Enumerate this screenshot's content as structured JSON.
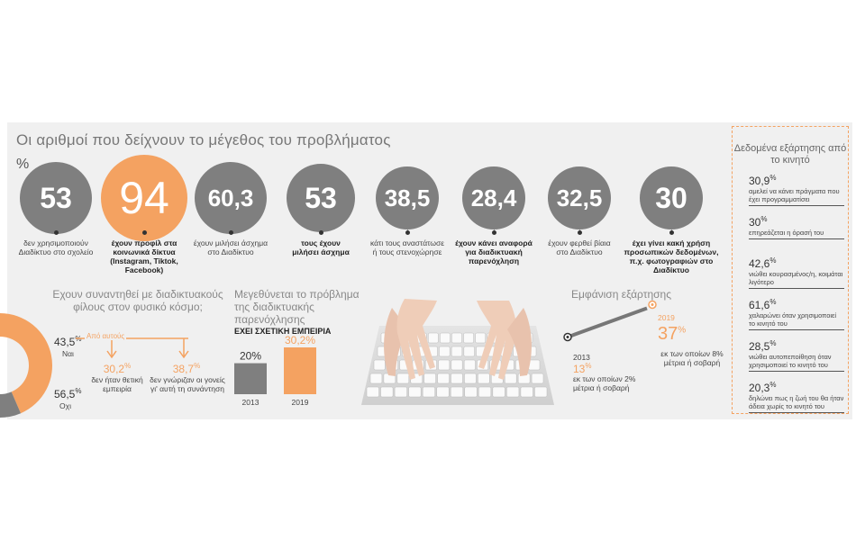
{
  "title": "Οι αριθμοί που δείχνουν το μέγεθος του προβλήματος",
  "percent_symbol": "%",
  "colors": {
    "accent": "#f4a261",
    "gray": "#7f7f7f",
    "panel": "#f0f0f0"
  },
  "chart_data": [
    {
      "type": "bubble-stats",
      "unit": "%",
      "items": [
        {
          "value": "53",
          "label": "δεν χρησιμοποιούν Διαδίκτυο στο σχολείο",
          "highlight": false
        },
        {
          "value": "94",
          "label": "έχουν προφίλ στα κοινωνικά δίκτυα (Instagram, Tiktok, Facebook)",
          "highlight": true
        },
        {
          "value": "60,3",
          "label": "έχουν μιλήσει άσχημα στο Διαδίκτυο",
          "highlight": false
        },
        {
          "value": "53",
          "label": "τους έχουν μιλήσει άσχημα",
          "highlight": false
        },
        {
          "value": "38,5",
          "label": "κάτι τους αναστάτωσε ή τους στενοχώρησε",
          "highlight": false
        },
        {
          "value": "28,4",
          "label": "έχουν κάνει αναφορά για διαδικτυακή παρενόχληση",
          "highlight": false
        },
        {
          "value": "32,5",
          "label": "έχουν φερθεί βίαια στο Διαδίκτυο",
          "highlight": false
        },
        {
          "value": "30",
          "label": "έχει γίνει κακή χρήση προσωπικών δεδομένων, π.χ. φωτογραφιών στο Διαδίκτυο",
          "highlight": false
        }
      ]
    },
    {
      "type": "pie",
      "title": "Εχουν συναντηθεί με διαδικτυακούς φίλους στον φυσικό κόσμο;",
      "slices": [
        {
          "label": "Ναι",
          "value": 43.5,
          "display": "43,5",
          "color": "#f4a261"
        },
        {
          "label": "Οχι",
          "value": 56.5,
          "display": "56,5",
          "color": "#7f7f7f"
        }
      ],
      "sub_label": "Από αυτούς",
      "sub": [
        {
          "value": "30,2",
          "label": "δεν ήταν θετική εμπειρία"
        },
        {
          "value": "38,7",
          "label": "δεν γνώριζαν οι γονείς γι' αυτή τη συνάντηση"
        }
      ]
    },
    {
      "type": "bar",
      "title": "Μεγεθύνεται το πρόβλημα της διαδικτυακής παρενόχλησης",
      "subtitle": "ΕΧΕΙ ΣΧΕΤΙΚΗ ΕΜΠΕΙΡΙΑ",
      "categories": [
        "2013",
        "2019"
      ],
      "values": [
        20,
        30.2
      ],
      "labels": [
        "20",
        "30,2"
      ],
      "colors": [
        "#7f7f7f",
        "#f4a261"
      ]
    },
    {
      "type": "line",
      "title": "Εμφάνιση εξάρτησης",
      "points": [
        {
          "x": "2013",
          "y": 13,
          "display": "13",
          "note": "εκ των οποίων 2% μέτρια ή σοβαρή"
        },
        {
          "x": "2019",
          "y": 37,
          "display": "37",
          "note": "εκ των οποίων 8% μέτρια ή σοβαρή"
        }
      ]
    },
    {
      "type": "table",
      "title": "Δεδομένα εξάρτησης από το κινητό",
      "rows": [
        {
          "value": "30,9",
          "label": "αμελεί να κάνει πράγματα που έχει προγραμματίσει"
        },
        {
          "value": "30",
          "label": "επηρεάζεται η όρασή του"
        },
        {
          "value": "42,6",
          "label": "νιώθει κουρασμένος/η, κοιμάται λιγότερο"
        },
        {
          "value": "61,6",
          "label": "χαλαρώνει όταν χρησιμοποιεί το κινητό του"
        },
        {
          "value": "28,5",
          "label": "νιώθει αυτοπεποίθηση όταν χρησιμοποιεί το κινητό του"
        },
        {
          "value": "20,3",
          "label": "δηλώνει πως η ζωή του θα ήταν άδεια χωρίς το κινητό του"
        }
      ]
    }
  ]
}
